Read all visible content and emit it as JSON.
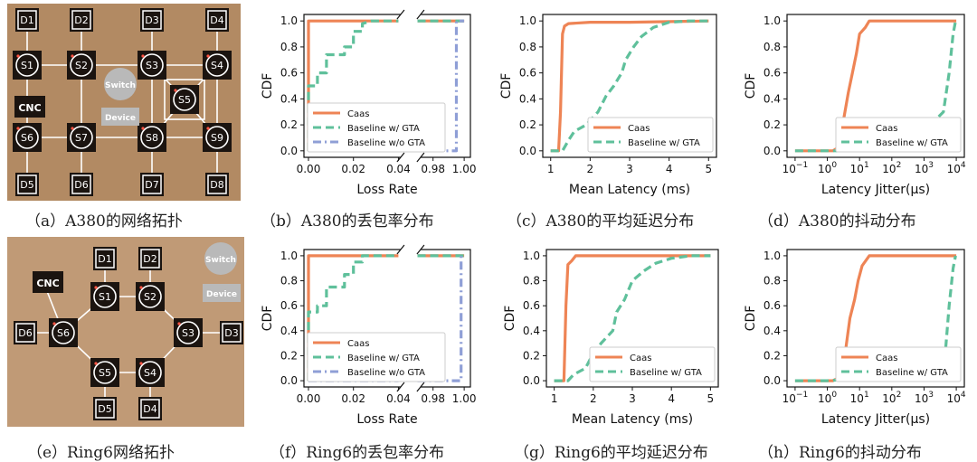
{
  "colors": {
    "caas": "#ee8455",
    "gta": "#5fc09b",
    "nogta": "#8f9fd6",
    "wood": "#b28a63",
    "node": "#1b1410"
  },
  "captions": {
    "a": "（a）A380的网络拓扑",
    "b": "（b）A380的丢包率分布",
    "c": "（c）A380的平均延迟分布",
    "d": "（d）A380的抖动分布",
    "e": "（e）Ring6网络拓扑",
    "f": "（f）Ring6的丢包率分布",
    "g": "（g）Ring6的平均延迟分布",
    "h": "（h）Ring6的抖动分布"
  },
  "topology_a": {
    "devices": [
      "D1",
      "D2",
      "D3",
      "D4",
      "D5",
      "D6",
      "D7",
      "D8"
    ],
    "switches": [
      "S1",
      "S2",
      "S3",
      "S4",
      "S5",
      "S6",
      "S7",
      "S8",
      "S9"
    ],
    "cnc": "CNC",
    "legend_switch": "Switch",
    "legend_device": "Device"
  },
  "topology_e": {
    "devices": [
      "D1",
      "D2",
      "D3",
      "D4",
      "D5",
      "D6"
    ],
    "switches": [
      "S1",
      "S2",
      "S3",
      "S4",
      "S5",
      "S6"
    ],
    "cnc": "CNC",
    "legend_switch": "Switch",
    "legend_device": "Device"
  },
  "chart_data": [
    {
      "id": "b",
      "type": "line",
      "xlabel": "Loss Rate",
      "ylabel": "CDF",
      "axis_break": true,
      "x_ticks": [
        "0.00",
        "0.02",
        "0.04",
        "0.98",
        "1.00"
      ],
      "y_ticks": [
        "0.0",
        "0.2",
        "0.4",
        "0.6",
        "0.8",
        "1.0"
      ],
      "ylim": [
        0,
        1
      ],
      "legend": [
        "Caas",
        "Baseline w/ GTA",
        "Baseline w/o GTA"
      ],
      "series": [
        {
          "name": "Caas",
          "style": "solid",
          "points": [
            [
              0.0,
              0.0
            ],
            [
              0.0,
              1.0
            ],
            [
              0.04,
              1.0
            ]
          ]
        },
        {
          "name": "Baseline w/ GTA",
          "style": "dash",
          "points": [
            [
              0.0,
              0.0
            ],
            [
              0.0,
              0.5
            ],
            [
              0.004,
              0.5
            ],
            [
              0.004,
              0.6
            ],
            [
              0.008,
              0.6
            ],
            [
              0.008,
              0.74
            ],
            [
              0.016,
              0.74
            ],
            [
              0.016,
              0.8
            ],
            [
              0.02,
              0.8
            ],
            [
              0.02,
              0.92
            ],
            [
              0.024,
              0.92
            ],
            [
              0.024,
              0.98
            ],
            [
              0.028,
              1.0
            ],
            [
              0.04,
              1.0
            ]
          ]
        },
        {
          "name": "Baseline w/o GTA",
          "style": "dashdot",
          "points": [
            [
              0.0,
              0.0
            ],
            [
              0.04,
              0.0
            ]
          ]
        }
      ],
      "series_right": [
        {
          "name": "Caas",
          "style": "solid",
          "points": [
            [
              0.97,
              1.0
            ],
            [
              1.0,
              1.0
            ]
          ]
        },
        {
          "name": "Baseline w/ GTA",
          "style": "dash",
          "points": [
            [
              0.97,
              1.0
            ],
            [
              1.0,
              1.0
            ]
          ]
        },
        {
          "name": "Baseline w/o GTA",
          "style": "dashdot",
          "points": [
            [
              0.97,
              0.0
            ],
            [
              0.995,
              0.0
            ],
            [
              0.995,
              1.0
            ],
            [
              1.0,
              1.0
            ]
          ]
        }
      ]
    },
    {
      "id": "c",
      "type": "line",
      "xlabel": "Mean Latency (ms)",
      "ylabel": "CDF",
      "x_ticks": [
        "1",
        "2",
        "3",
        "4",
        "5"
      ],
      "y_ticks": [
        "0.0",
        "0.2",
        "0.4",
        "0.6",
        "0.8",
        "1.0"
      ],
      "xlim": [
        1,
        5
      ],
      "ylim": [
        0,
        1
      ],
      "legend": [
        "Caas",
        "Baseline w/ GTA"
      ],
      "series": [
        {
          "name": "Caas",
          "style": "solid",
          "points": [
            [
              1.0,
              0.0
            ],
            [
              1.2,
              0.0
            ],
            [
              1.25,
              0.3
            ],
            [
              1.3,
              0.9
            ],
            [
              1.35,
              0.96
            ],
            [
              1.45,
              0.98
            ],
            [
              2.0,
              0.99
            ],
            [
              3.0,
              0.99
            ],
            [
              5.0,
              1.0
            ]
          ]
        },
        {
          "name": "Baseline w/ GTA",
          "style": "dash",
          "points": [
            [
              1.0,
              0.0
            ],
            [
              1.3,
              0.0
            ],
            [
              1.45,
              0.08
            ],
            [
              1.6,
              0.15
            ],
            [
              1.9,
              0.2
            ],
            [
              2.2,
              0.3
            ],
            [
              2.4,
              0.42
            ],
            [
              2.6,
              0.5
            ],
            [
              2.8,
              0.6
            ],
            [
              2.9,
              0.7
            ],
            [
              3.1,
              0.8
            ],
            [
              3.3,
              0.88
            ],
            [
              3.6,
              0.95
            ],
            [
              4.0,
              0.99
            ],
            [
              4.5,
              1.0
            ],
            [
              5.0,
              1.0
            ]
          ]
        }
      ]
    },
    {
      "id": "d",
      "type": "line",
      "xlabel": "Latency Jitter(μs)",
      "ylabel": "CDF",
      "xscale": "log",
      "x_ticks": [
        "10^-1",
        "10^0",
        "10^1",
        "10^2",
        "10^3",
        "10^4"
      ],
      "y_ticks": [
        "0.0",
        "0.2",
        "0.4",
        "0.6",
        "0.8",
        "1.0"
      ],
      "xlim": [
        0.1,
        10000
      ],
      "ylim": [
        0,
        1
      ],
      "legend": [
        "Caas",
        "Baseline w/ GTA"
      ],
      "series": [
        {
          "name": "Caas",
          "style": "solid",
          "points": [
            [
              0.1,
              0.0
            ],
            [
              1.5,
              0.0
            ],
            [
              2.0,
              0.02
            ],
            [
              3.0,
              0.2
            ],
            [
              4.5,
              0.45
            ],
            [
              6.0,
              0.6
            ],
            [
              8.0,
              0.75
            ],
            [
              10.0,
              0.9
            ],
            [
              15.0,
              0.95
            ],
            [
              20.0,
              1.0
            ],
            [
              10000.0,
              1.0
            ]
          ]
        },
        {
          "name": "Baseline w/ GTA",
          "style": "dash",
          "points": [
            [
              0.1,
              0.0
            ],
            [
              2.0,
              0.0
            ],
            [
              5.0,
              0.03
            ],
            [
              100.0,
              0.1
            ],
            [
              1000.0,
              0.15
            ],
            [
              4000.0,
              0.3
            ],
            [
              6000.0,
              0.6
            ],
            [
              8000.0,
              0.9
            ],
            [
              9500.0,
              1.0
            ]
          ]
        }
      ]
    },
    {
      "id": "f",
      "type": "line",
      "xlabel": "Loss Rate",
      "ylabel": "CDF",
      "axis_break": true,
      "x_ticks": [
        "0.00",
        "0.02",
        "0.04",
        "0.98",
        "1.00"
      ],
      "y_ticks": [
        "0.0",
        "0.2",
        "0.4",
        "0.6",
        "0.8",
        "1.0"
      ],
      "ylim": [
        0,
        1
      ],
      "legend": [
        "Caas",
        "Baseline w/ GTA",
        "Baseline w/o GTA"
      ],
      "series": [
        {
          "name": "Caas",
          "style": "solid",
          "points": [
            [
              0.0,
              0.0
            ],
            [
              0.0,
              1.0
            ],
            [
              0.04,
              1.0
            ]
          ]
        },
        {
          "name": "Baseline w/ GTA",
          "style": "dash",
          "points": [
            [
              0.0,
              0.0
            ],
            [
              0.0,
              0.55
            ],
            [
              0.004,
              0.55
            ],
            [
              0.004,
              0.6
            ],
            [
              0.008,
              0.6
            ],
            [
              0.008,
              0.75
            ],
            [
              0.016,
              0.75
            ],
            [
              0.016,
              0.85
            ],
            [
              0.02,
              0.85
            ],
            [
              0.02,
              0.95
            ],
            [
              0.024,
              0.95
            ],
            [
              0.024,
              1.0
            ],
            [
              0.04,
              1.0
            ]
          ]
        },
        {
          "name": "Baseline w/o GTA",
          "style": "dashdot",
          "points": [
            [
              0.0,
              0.0
            ],
            [
              0.04,
              0.0
            ]
          ]
        }
      ],
      "series_right": [
        {
          "name": "Caas",
          "style": "solid",
          "points": [
            [
              0.97,
              1.0
            ],
            [
              1.0,
              1.0
            ]
          ]
        },
        {
          "name": "Baseline w/ GTA",
          "style": "dash",
          "points": [
            [
              0.97,
              1.0
            ],
            [
              1.0,
              1.0
            ]
          ]
        },
        {
          "name": "Baseline w/o GTA",
          "style": "dashdot",
          "points": [
            [
              0.97,
              0.0
            ],
            [
              0.998,
              0.0
            ],
            [
              0.998,
              1.0
            ],
            [
              1.0,
              1.0
            ]
          ]
        }
      ]
    },
    {
      "id": "g",
      "type": "line",
      "xlabel": "Mean Latency (ms)",
      "ylabel": "CDF",
      "x_ticks": [
        "1",
        "2",
        "3",
        "4",
        "5"
      ],
      "y_ticks": [
        "0.0",
        "0.2",
        "0.4",
        "0.6",
        "0.8",
        "1.0"
      ],
      "xlim": [
        1,
        5
      ],
      "ylim": [
        0,
        1
      ],
      "legend": [
        "Caas",
        "Baseline w/ GTA"
      ],
      "series": [
        {
          "name": "Caas",
          "style": "solid",
          "points": [
            [
              1.0,
              0.0
            ],
            [
              1.25,
              0.0
            ],
            [
              1.3,
              0.6
            ],
            [
              1.35,
              0.93
            ],
            [
              1.45,
              0.96
            ],
            [
              1.55,
              1.0
            ],
            [
              5.0,
              1.0
            ]
          ]
        },
        {
          "name": "Baseline w/ GTA",
          "style": "dash",
          "points": [
            [
              1.0,
              0.0
            ],
            [
              1.35,
              0.0
            ],
            [
              1.5,
              0.05
            ],
            [
              1.8,
              0.1
            ],
            [
              2.0,
              0.22
            ],
            [
              2.2,
              0.3
            ],
            [
              2.5,
              0.4
            ],
            [
              2.6,
              0.55
            ],
            [
              2.8,
              0.65
            ],
            [
              3.0,
              0.8
            ],
            [
              3.3,
              0.88
            ],
            [
              3.6,
              0.94
            ],
            [
              4.0,
              0.98
            ],
            [
              4.5,
              1.0
            ],
            [
              5.0,
              1.0
            ]
          ]
        }
      ]
    },
    {
      "id": "h",
      "type": "line",
      "xlabel": "Latency Jitter(μs)",
      "ylabel": "CDF",
      "xscale": "log",
      "x_ticks": [
        "10^-1",
        "10^0",
        "10^1",
        "10^2",
        "10^3",
        "10^4"
      ],
      "y_ticks": [
        "0.0",
        "0.2",
        "0.4",
        "0.6",
        "0.8",
        "1.0"
      ],
      "xlim": [
        0.1,
        10000
      ],
      "ylim": [
        0,
        1
      ],
      "legend": [
        "Caas",
        "Baseline w/ GTA"
      ],
      "series": [
        {
          "name": "Caas",
          "style": "solid",
          "points": [
            [
              0.1,
              0.0
            ],
            [
              1.5,
              0.0
            ],
            [
              2.5,
              0.03
            ],
            [
              3.5,
              0.2
            ],
            [
              5.0,
              0.5
            ],
            [
              7.0,
              0.65
            ],
            [
              9.0,
              0.8
            ],
            [
              12.0,
              0.92
            ],
            [
              20.0,
              1.0
            ],
            [
              10000.0,
              1.0
            ]
          ]
        },
        {
          "name": "Baseline w/ GTA",
          "style": "dash",
          "points": [
            [
              0.1,
              0.0
            ],
            [
              1.0,
              0.0
            ],
            [
              10.0,
              0.02
            ],
            [
              300.0,
              0.05
            ],
            [
              2000.0,
              0.1
            ],
            [
              4500.0,
              0.2
            ],
            [
              6000.0,
              0.6
            ],
            [
              8000.0,
              0.9
            ],
            [
              9500.0,
              1.0
            ]
          ]
        }
      ]
    }
  ]
}
